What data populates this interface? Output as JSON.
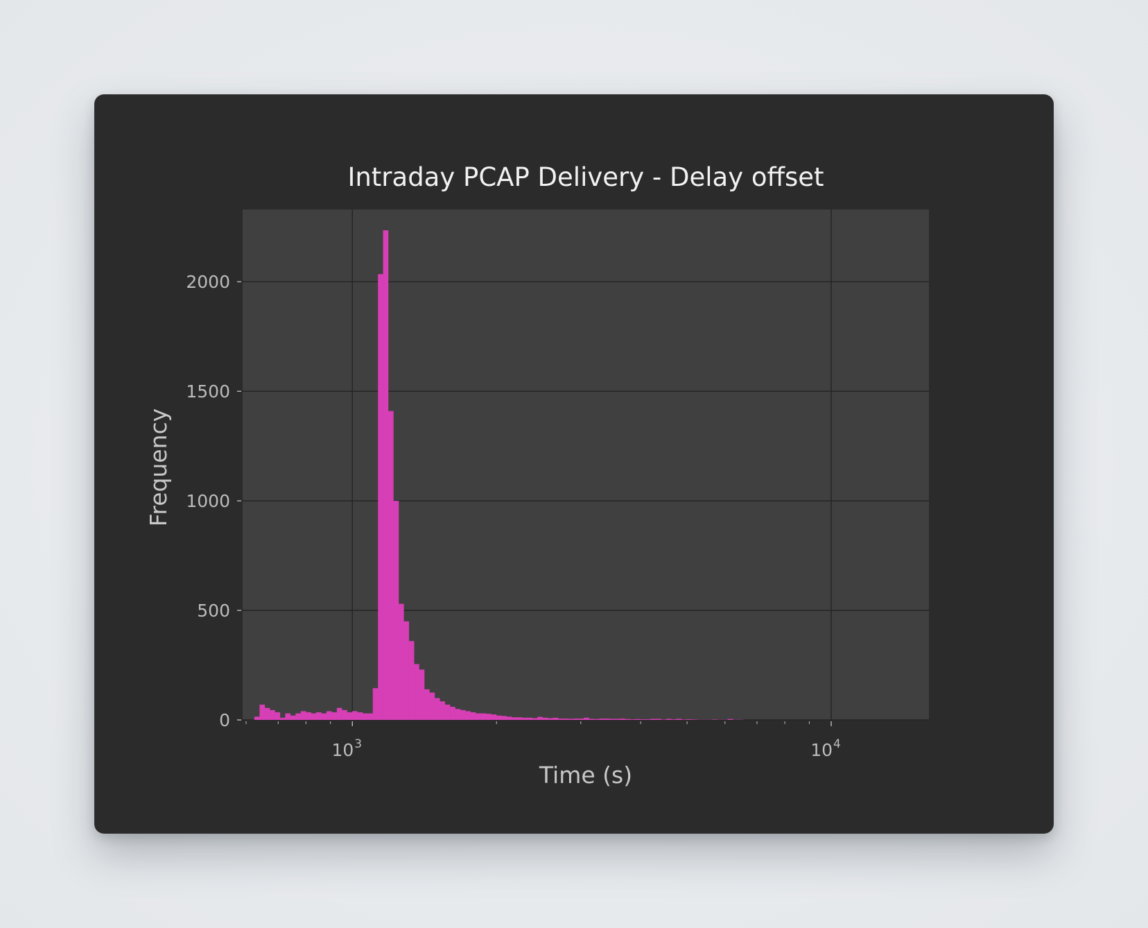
{
  "colors": {
    "background": "#2b2b2b",
    "plot_area": "#404040",
    "grid": "#262626",
    "bars": "#d63fb5",
    "text": "#f2f2f2",
    "tick_text": "#bdbdbd"
  },
  "chart_data": {
    "type": "bar",
    "title": "Intraday PCAP Delivery - Delay offset",
    "xlabel": "Time (s)",
    "ylabel": "Frequency",
    "xscale": "log",
    "xlim": [
      590,
      16000
    ],
    "ylim": [
      0,
      2330
    ],
    "grid": true,
    "legend": "none",
    "x_ticks": [
      {
        "value": 1000,
        "base": "10",
        "exp": "3"
      },
      {
        "value": 10000,
        "base": "10",
        "exp": "4"
      }
    ],
    "y_ticks": [
      0,
      500,
      1000,
      1500,
      2000
    ],
    "bin_edges": [
      624,
      640,
      656,
      672,
      689,
      706,
      724,
      742,
      761,
      780,
      800,
      820,
      840,
      861,
      883,
      905,
      928,
      951,
      975,
      999,
      1024,
      1050,
      1076,
      1103,
      1131,
      1159,
      1188,
      1218,
      1249,
      1280,
      1312,
      1345,
      1378,
      1413,
      1448,
      1485,
      1522,
      1560,
      1599,
      1639,
      1680,
      1722,
      1765,
      1809,
      1855,
      1901,
      1949,
      1998,
      2048,
      2099,
      2152,
      2206,
      2261,
      2318,
      2376,
      2435,
      2496,
      2559,
      2623,
      2689,
      2756,
      2825,
      2896,
      2968,
      3043,
      3119,
      3197,
      3277,
      3359,
      3443,
      3529,
      3617,
      3708,
      3801,
      3896,
      3993,
      4093,
      4196,
      4301,
      4408,
      4519,
      4632,
      4748,
      4866,
      4988,
      5113,
      5241,
      5372,
      5507,
      5644,
      5786,
      5930,
      6079,
      6231,
      6387,
      6546
    ],
    "counts": [
      15,
      70,
      55,
      45,
      35,
      10,
      30,
      20,
      30,
      40,
      35,
      30,
      35,
      30,
      40,
      35,
      55,
      45,
      35,
      40,
      35,
      30,
      30,
      145,
      2035,
      2235,
      1410,
      1000,
      530,
      450,
      360,
      255,
      230,
      140,
      125,
      100,
      85,
      70,
      60,
      50,
      45,
      40,
      35,
      30,
      30,
      28,
      25,
      20,
      18,
      15,
      12,
      12,
      10,
      10,
      8,
      14,
      10,
      8,
      10,
      6,
      6,
      5,
      6,
      6,
      10,
      5,
      4,
      6,
      6,
      5,
      5,
      6,
      4,
      3,
      4,
      3,
      3,
      5,
      5,
      2,
      5,
      3,
      5,
      2,
      3,
      2,
      1,
      1,
      1,
      2,
      1,
      1,
      4,
      1,
      1
    ]
  }
}
